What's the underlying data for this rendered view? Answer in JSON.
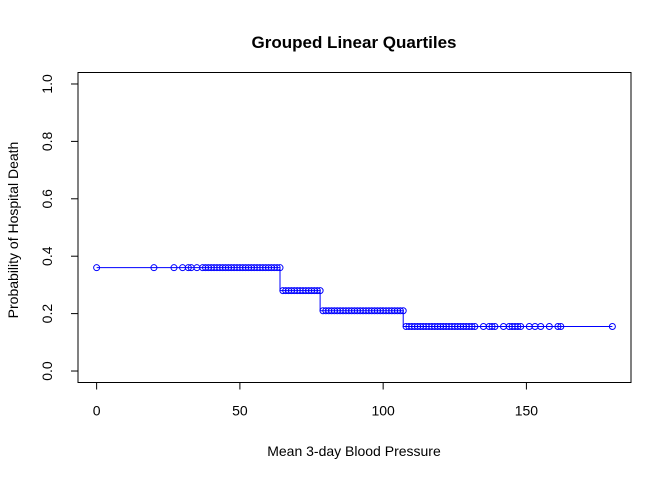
{
  "chart_data": {
    "type": "line",
    "title": "Grouped Linear Quartiles",
    "xlabel": "Mean 3-day Blood Pressure",
    "ylabel": "Probability of Hospital Death",
    "xlim": [
      -6.5,
      186.5
    ],
    "ylim": [
      -0.04,
      1.04
    ],
    "x_ticks": [
      0,
      50,
      100,
      150
    ],
    "y_ticks": [
      0.0,
      0.2,
      0.4,
      0.6,
      0.8,
      1.0
    ],
    "x_tick_labels": [
      "0",
      "50",
      "100",
      "150"
    ],
    "y_tick_labels": [
      "0.0",
      "0.2",
      "0.4",
      "0.6",
      "0.8",
      "1.0"
    ],
    "grid": false,
    "line_color": "#0000ff",
    "marker": "open-circle",
    "step_style": "step-with-vertical-jumps",
    "series": [
      {
        "quartile_levels": [
          {
            "x_from": 0,
            "x_to": 64,
            "y": 0.36
          },
          {
            "x_from": 65,
            "x_to": 78,
            "y": 0.28
          },
          {
            "x_from": 79,
            "x_to": 107,
            "y": 0.21
          },
          {
            "x_from": 108,
            "x_to": 180,
            "y": 0.155
          }
        ],
        "x": [
          0,
          20,
          27,
          30,
          32,
          33,
          35,
          37,
          38,
          39,
          40,
          41,
          42,
          43,
          44,
          45,
          46,
          47,
          48,
          49,
          50,
          51,
          52,
          53,
          54,
          55,
          56,
          57,
          58,
          59,
          60,
          61,
          62,
          63,
          64,
          65,
          66,
          67,
          68,
          69,
          70,
          71,
          72,
          73,
          74,
          75,
          76,
          77,
          78,
          79,
          80,
          81,
          82,
          83,
          84,
          85,
          86,
          87,
          88,
          89,
          90,
          91,
          92,
          93,
          94,
          95,
          96,
          97,
          98,
          99,
          100,
          101,
          102,
          103,
          104,
          105,
          106,
          107,
          108,
          109,
          110,
          111,
          112,
          113,
          114,
          115,
          116,
          117,
          118,
          119,
          120,
          121,
          122,
          123,
          124,
          125,
          126,
          127,
          128,
          129,
          130,
          131,
          132,
          135,
          137,
          138,
          139,
          142,
          144,
          145,
          146,
          147,
          148,
          151,
          153,
          155,
          158,
          161,
          162,
          180
        ],
        "y": [
          0.36,
          0.36,
          0.36,
          0.36,
          0.36,
          0.36,
          0.36,
          0.36,
          0.36,
          0.36,
          0.36,
          0.36,
          0.36,
          0.36,
          0.36,
          0.36,
          0.36,
          0.36,
          0.36,
          0.36,
          0.36,
          0.36,
          0.36,
          0.36,
          0.36,
          0.36,
          0.36,
          0.36,
          0.36,
          0.36,
          0.36,
          0.36,
          0.36,
          0.36,
          0.36,
          0.28,
          0.28,
          0.28,
          0.28,
          0.28,
          0.28,
          0.28,
          0.28,
          0.28,
          0.28,
          0.28,
          0.28,
          0.28,
          0.28,
          0.21,
          0.21,
          0.21,
          0.21,
          0.21,
          0.21,
          0.21,
          0.21,
          0.21,
          0.21,
          0.21,
          0.21,
          0.21,
          0.21,
          0.21,
          0.21,
          0.21,
          0.21,
          0.21,
          0.21,
          0.21,
          0.21,
          0.21,
          0.21,
          0.21,
          0.21,
          0.21,
          0.21,
          0.21,
          0.155,
          0.155,
          0.155,
          0.155,
          0.155,
          0.155,
          0.155,
          0.155,
          0.155,
          0.155,
          0.155,
          0.155,
          0.155,
          0.155,
          0.155,
          0.155,
          0.155,
          0.155,
          0.155,
          0.155,
          0.155,
          0.155,
          0.155,
          0.155,
          0.155,
          0.155,
          0.155,
          0.155,
          0.155,
          0.155,
          0.155,
          0.155,
          0.155,
          0.155,
          0.155,
          0.155,
          0.155,
          0.155,
          0.155,
          0.155,
          0.155,
          0.155
        ]
      }
    ]
  }
}
